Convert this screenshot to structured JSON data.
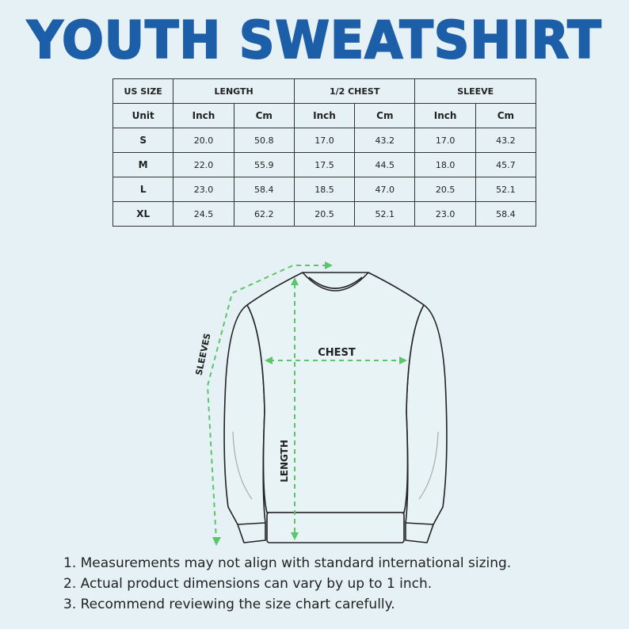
{
  "title": "YOUTH SWEATSHIRT",
  "table": {
    "headers": [
      "US SIZE",
      "LENGTH",
      "1/2 CHEST",
      "SLEEVE"
    ],
    "units": [
      "Unit",
      "Inch",
      "Cm",
      "Inch",
      "Cm",
      "Inch",
      "Cm"
    ],
    "rows": [
      [
        "S",
        "20.0",
        "50.8",
        "17.0",
        "43.2",
        "17.0",
        "43.2"
      ],
      [
        "M",
        "22.0",
        "55.9",
        "17.5",
        "44.5",
        "18.0",
        "45.7"
      ],
      [
        "L",
        "23.0",
        "58.4",
        "18.5",
        "47.0",
        "20.5",
        "52.1"
      ],
      [
        "XL",
        "24.5",
        "62.2",
        "20.5",
        "52.1",
        "23.0",
        "58.4"
      ]
    ]
  },
  "diagram": {
    "sleeves_label": "SLEEVES",
    "chest_label": "CHEST",
    "length_label": "LENGTH",
    "arrow_color": "#5cc46a"
  },
  "colors": {
    "title": "#1d5ea8",
    "background": "#e5f1f4"
  },
  "notes": [
    "1. Measurements may not align with standard international sizing.",
    "2. Actual product dimensions can vary by up to 1 inch.",
    "3. Recommend reviewing the size chart carefully."
  ]
}
